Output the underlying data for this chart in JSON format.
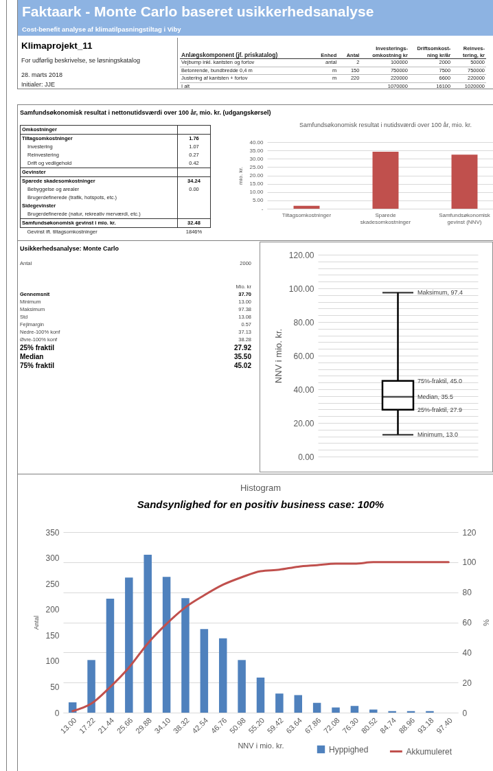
{
  "chart_data": [
    {
      "type": "other",
      "title": "Faktaark - Monte Carlo baseret usikkerhedsanalyse",
      "subtitle": "Cost-benefit analyse af klimatilpasningstiltag i Viby",
      "annotations": [
        "Klimaprojekt_11",
        "For udførlig beskrivelse, se løsningskatalog",
        "28. marts 2018",
        "Initialer: JJE"
      ]
    },
    {
      "type": "other",
      "categories": [
        "Anlægskomponent (jf. priskatalog)",
        "Enhed",
        "Antal",
        "Investerings-omkostning kr",
        "Driftsomkost-ning kr/år",
        "Reinves-tering, kr"
      ],
      "cell_labels": [
        [
          "Vejbump inkl. kantsten og fortov",
          "antal",
          "2",
          "100000",
          "2000",
          "50000"
        ],
        [
          "Betonrende, bundbredde 0,4 m",
          "m",
          "150",
          "750000",
          "7500",
          "750000"
        ],
        [
          "Justering af kantsten + fortov",
          "m",
          "220",
          "220000",
          "6600",
          "220000"
        ],
        [
          "I alt",
          null,
          null,
          "1070000",
          "16100",
          "1020000"
        ]
      ]
    },
    {
      "type": "other",
      "title": "Samfundsøkonomisk resultat i nettonutidsværdi over 100 år, mio. kr. (udgangskørsel)",
      "cell_labels": [
        [
          "Omkostninger",
          null
        ],
        [
          "Tiltagsomkostninger",
          "1.76"
        ],
        [
          "Investering",
          "1.07"
        ],
        [
          "Reinvestering",
          "0.27"
        ],
        [
          "Drift og vedligehold",
          "0.42"
        ],
        [
          "Gevinster",
          null
        ],
        [
          "Sparede skadesomkostninger",
          "34.24"
        ],
        [
          "Bebyggelse og arealer",
          "0.00"
        ],
        [
          "Brugerdefinerede (trafik, hotspots, etc.)",
          null
        ],
        [
          "Sidegevinster",
          null
        ],
        [
          "Brugerdefinerede (natur, rekreativ merværdi, etc.)",
          null
        ],
        [
          "Samfundsøkonomisk gevinst i mio. kr.",
          "32.48"
        ],
        [
          "Gevinst ift. tiltagsomkostninger",
          "1846%"
        ]
      ]
    },
    {
      "type": "bar",
      "title": "Samfundsøkonomisk resultat i nutidsværdi over 100 år, mio. kr.",
      "ylabel": "mio. kr.",
      "categories": [
        "Tiltagsomkostninger",
        "Sparede skadesomkostninger",
        "Samfundsøkonomisk gevinst (NNV)"
      ],
      "values": [
        1.76,
        34.24,
        32.48
      ],
      "color": "#c0504d",
      "ylim": [
        0,
        40
      ],
      "yticks": [
        {
          "value": 0,
          "label": "-"
        },
        {
          "value": 5,
          "label": "5.00"
        },
        {
          "value": 10,
          "label": "10.00"
        },
        {
          "value": 15,
          "label": "15.00"
        },
        {
          "value": 20,
          "label": "20.00"
        },
        {
          "value": 25,
          "label": "25.00"
        },
        {
          "value": 30,
          "label": "30.00"
        },
        {
          "value": 35,
          "label": "35.00"
        },
        {
          "value": 40,
          "label": "40.00"
        }
      ],
      "grid": "y"
    },
    {
      "type": "other",
      "title": "Usikkerhedsanalyse: Monte Carlo",
      "cell_labels": [
        [
          "Antal",
          "2000"
        ],
        [
          null,
          "Mio. kr"
        ],
        [
          "Gennemsnit",
          "37.70"
        ],
        [
          "Minimum",
          "13.00"
        ],
        [
          "Maksimum",
          "97.38"
        ],
        [
          "Std",
          "13.08"
        ],
        [
          "Fejlmargin",
          "0.57"
        ],
        [
          "Nedre-100% konf",
          "37.13"
        ],
        [
          "Øvre-100% konf",
          "38.28"
        ],
        [
          "25% fraktil",
          "27.92"
        ],
        [
          "Median",
          "35.50"
        ],
        [
          "75% fraktil",
          "45.02"
        ]
      ]
    },
    {
      "type": "box",
      "ylabel": "NNV i mio. kr.",
      "categories": [
        null
      ],
      "color": "#000000",
      "boxes": [
        {
          "low": 13.0,
          "q1": 27.9,
          "median": 35.5,
          "q3": 45.0,
          "high": 97.4
        }
      ],
      "ylim": [
        0,
        120
      ],
      "yticks": [
        {
          "value": 0,
          "label": "0.00"
        },
        {
          "value": 4,
          "label": null
        },
        {
          "value": 8,
          "label": null
        },
        {
          "value": 12,
          "label": null
        },
        {
          "value": 16,
          "label": null
        },
        {
          "value": 20,
          "label": "20.00"
        },
        {
          "value": 24,
          "label": null
        },
        {
          "value": 28,
          "label": null
        },
        {
          "value": 32,
          "label": null
        },
        {
          "value": 36,
          "label": null
        },
        {
          "value": 40,
          "label": "40.00"
        },
        {
          "value": 44,
          "label": null
        },
        {
          "value": 48,
          "label": null
        },
        {
          "value": 52,
          "label": null
        },
        {
          "value": 56,
          "label": null
        },
        {
          "value": 60,
          "label": "60.00"
        },
        {
          "value": 64,
          "label": null
        },
        {
          "value": 68,
          "label": null
        },
        {
          "value": 72,
          "label": null
        },
        {
          "value": 76,
          "label": null
        },
        {
          "value": 80,
          "label": "80.00"
        },
        {
          "value": 84,
          "label": null
        },
        {
          "value": 88,
          "label": null
        },
        {
          "value": 92,
          "label": null
        },
        {
          "value": 96,
          "label": null
        },
        {
          "value": 100,
          "label": "100.00"
        },
        {
          "value": 104,
          "label": null
        },
        {
          "value": 108,
          "label": null
        },
        {
          "value": 112,
          "label": null
        },
        {
          "value": 116,
          "label": null
        },
        {
          "value": 120,
          "label": "120.00"
        }
      ],
      "grid": "y",
      "annotations": [
        "Maksimum, 97.4",
        "75%-fraktil, 45.0",
        "Median, 35.5",
        "25%-fraktil, 27.9",
        "Minimum, 13.0"
      ]
    },
    {
      "type": "bar",
      "title": "Histogram",
      "subtitle": "Sandsynlighed for en positiv business case: 100%",
      "xlabel": "NNV i mio. kr.",
      "ylabel": "Antal",
      "y2label": "%",
      "categories": [
        "13.00",
        "17.22",
        "21.44",
        "25.66",
        "29.88",
        "34.10",
        "38.32",
        "42.54",
        "46.76",
        "50.98",
        "55.20",
        "59.42",
        "63.64",
        "67.86",
        "72.08",
        "76.30",
        "80.52",
        "84.74",
        "88.96",
        "93.18",
        "97.40"
      ],
      "series": [
        {
          "name": "Hyppighed",
          "color": "#4f81bd",
          "values": [
            20,
            102,
            221,
            262,
            306,
            263,
            222,
            162,
            144,
            102,
            68,
            37,
            34,
            19,
            10,
            13,
            6,
            3,
            3,
            3,
            0
          ]
        },
        {
          "name": "Akkumuleret",
          "type": "line",
          "axis": "y2",
          "color": "#c0504d",
          "values": [
            1,
            6,
            17,
            30,
            46,
            59,
            70,
            78,
            85,
            90,
            94,
            95,
            97,
            98,
            99,
            99,
            100,
            100,
            100,
            100,
            100
          ]
        }
      ],
      "ylim": [
        0,
        350
      ],
      "yticks": [
        0,
        50,
        100,
        150,
        200,
        250,
        300,
        350
      ],
      "y2lim": [
        0,
        120
      ],
      "y2ticks": [
        0,
        20,
        40,
        60,
        80,
        100,
        120
      ],
      "grid": "y2",
      "legend": "bottom"
    }
  ]
}
